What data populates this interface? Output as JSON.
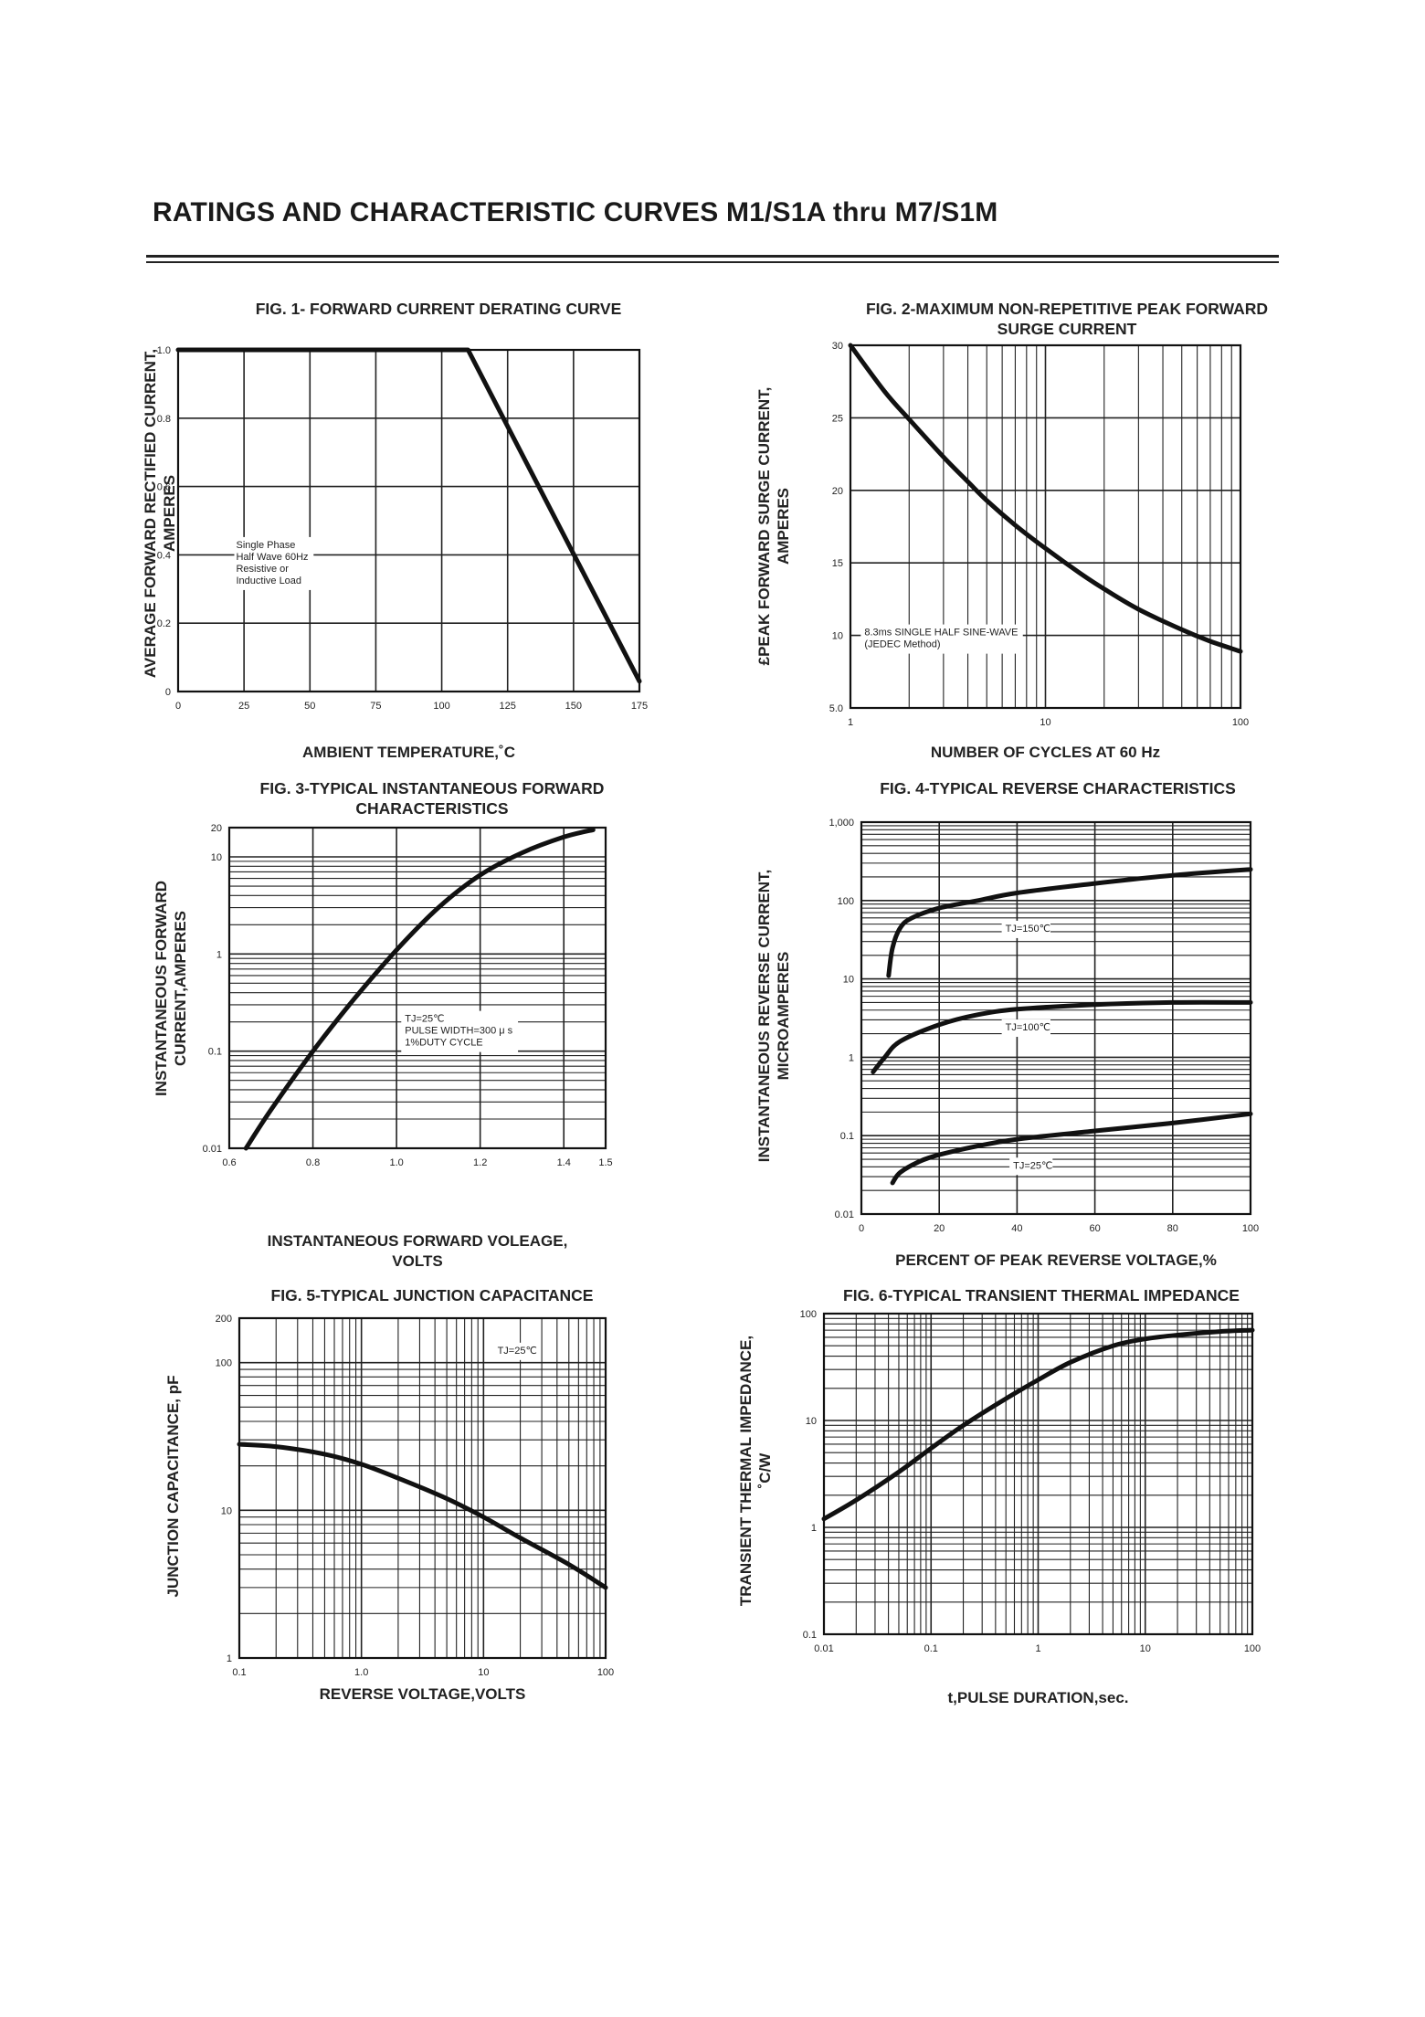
{
  "page": {
    "title": "RATINGS AND CHARACTERISTIC CURVES  M1/S1A thru M7/S1M"
  },
  "chart_data": [
    {
      "id": "fig1",
      "type": "line",
      "title": "FIG. 1- FORWARD CURRENT DERATING CURVE",
      "title_lines": [
        "FIG. 1- FORWARD CURRENT DERATING CURVE"
      ],
      "xlabel_lines": [
        "AMBIENT TEMPERATURE,˚C"
      ],
      "ylabel_lines": [
        "AVERAGE FORWARD RECTIFIED CURRENT,",
        "AMPERES"
      ],
      "xscale": "linear",
      "yscale": "linear",
      "xlim": [
        0,
        175
      ],
      "ylim": [
        0,
        1.0
      ],
      "x_ticks": [
        0,
        25,
        50,
        75,
        100,
        125,
        150,
        175
      ],
      "x_tick_labels": [
        "0",
        "25",
        "50",
        "75",
        "100",
        "125",
        "150",
        "175"
      ],
      "y_ticks": [
        0,
        0.2,
        0.4,
        0.6,
        0.8,
        1.0
      ],
      "y_tick_labels": [
        "0",
        "0.2",
        "0.4",
        "0.6",
        "0.8",
        "1.0"
      ],
      "grid": true,
      "series": [
        {
          "x": [
            0,
            110,
            175
          ],
          "y": [
            1.0,
            1.0,
            0.03
          ]
        }
      ],
      "annotations": [
        {
          "lines": [
            "Single Phase",
            "Half Wave 60Hz",
            "Resistive or",
            "Inductive Load"
          ],
          "x": 22,
          "y": 0.42,
          "boxed": false
        }
      ]
    },
    {
      "id": "fig2",
      "type": "line",
      "title": "FIG. 2-MAXIMUM NON-REPETITIVE PEAK FORWARD SURGE CURRENT",
      "title_lines": [
        "FIG. 2-MAXIMUM NON-REPETITIVE PEAK FORWARD",
        "SURGE CURRENT"
      ],
      "xlabel_lines": [
        "NUMBER OF CYCLES AT 60 Hz"
      ],
      "ylabel_lines": [
        "£PEAK  FORWARD SURGE CURRENT,",
        "AMPERES"
      ],
      "xscale": "log",
      "yscale": "linear",
      "xlim": [
        1,
        100
      ],
      "ylim": [
        5,
        30
      ],
      "x_ticks": [
        1,
        10,
        100
      ],
      "x_tick_labels": [
        "1",
        "10",
        "100"
      ],
      "y_ticks": [
        5,
        10,
        15,
        20,
        25,
        30
      ],
      "y_tick_labels": [
        "5.0",
        "10",
        "15",
        "20",
        "25",
        "30"
      ],
      "grid": true,
      "series": [
        {
          "x": [
            1,
            1.5,
            2,
            3,
            4,
            5,
            7,
            10,
            15,
            20,
            30,
            50,
            70,
            100
          ],
          "y": [
            30,
            26.8,
            24.9,
            22.3,
            20.6,
            19.3,
            17.6,
            16.0,
            14.3,
            13.2,
            11.8,
            10.4,
            9.6,
            8.9
          ]
        }
      ],
      "annotations": [
        {
          "lines": [
            "8.3ms SINGLE HALF SINE-WAVE",
            "(JEDEC Method)"
          ],
          "x": 1.18,
          "y": 10,
          "boxed": true
        }
      ]
    },
    {
      "id": "fig3",
      "type": "line",
      "title": "FIG. 3-TYPICAL INSTANTANEOUS FORWARD CHARACTERISTICS",
      "title_lines": [
        "FIG. 3-TYPICAL INSTANTANEOUS FORWARD",
        "CHARACTERISTICS"
      ],
      "xlabel_lines": [
        "INSTANTANEOUS FORWARD VOLEAGE,",
        "VOLTS"
      ],
      "ylabel_lines": [
        "INSTANTANEOUS FORWARD",
        "CURRENT,AMPERES"
      ],
      "xscale": "linear",
      "yscale": "log",
      "xlim": [
        0.6,
        1.5
      ],
      "ylim": [
        0.01,
        20
      ],
      "x_ticks": [
        0.6,
        0.8,
        1.0,
        1.2,
        1.4,
        1.5
      ],
      "x_tick_labels": [
        "0.6",
        "0.8",
        "1.0",
        "1.2",
        "1.4",
        "1.5"
      ],
      "y_ticks": [
        0.01,
        0.1,
        1,
        10,
        20
      ],
      "y_tick_labels": [
        "0.01",
        "0.1",
        "1",
        "10",
        "20"
      ],
      "grid": true,
      "series": [
        {
          "x": [
            0.64,
            0.7,
            0.8,
            0.9,
            1.0,
            1.1,
            1.2,
            1.3,
            1.4,
            1.47
          ],
          "y": [
            0.01,
            0.025,
            0.1,
            0.35,
            1.1,
            3.0,
            6.5,
            11,
            16,
            19
          ]
        }
      ],
      "annotations": [
        {
          "lines": [
            "TJ=25℃",
            "PULSE WIDTH=300 μ s",
            "1%DUTY CYCLE"
          ],
          "x": 1.02,
          "y": 0.2,
          "boxed": true
        }
      ]
    },
    {
      "id": "fig4",
      "type": "line",
      "title": "FIG. 4-TYPICAL REVERSE CHARACTERISTICS",
      "title_lines": [
        "FIG. 4-TYPICAL REVERSE CHARACTERISTICS"
      ],
      "xlabel_lines": [
        "PERCENT OF PEAK REVERSE VOLTAGE,%"
      ],
      "ylabel_lines": [
        "INSTANTANEOUS REVERSE CURRENT,",
        "MICROAMPERES"
      ],
      "xscale": "linear",
      "yscale": "log",
      "xlim": [
        0,
        100
      ],
      "ylim": [
        0.01,
        1000
      ],
      "x_ticks": [
        0,
        20,
        40,
        60,
        80,
        100
      ],
      "x_tick_labels": [
        "0",
        "20",
        "40",
        "60",
        "80",
        "100"
      ],
      "y_ticks": [
        0.01,
        0.1,
        1,
        10,
        100,
        1000
      ],
      "y_tick_labels": [
        "0.01",
        "0.1",
        "1",
        "10",
        "100",
        "1,000"
      ],
      "grid": true,
      "series": [
        {
          "name": "TJ=150℃",
          "x": [
            7,
            8,
            10,
            13,
            20,
            30,
            40,
            60,
            80,
            100
          ],
          "y": [
            11,
            25,
            45,
            60,
            80,
            100,
            125,
            165,
            210,
            250
          ]
        },
        {
          "name": "TJ=100℃",
          "x": [
            3,
            6,
            10,
            20,
            30,
            40,
            60,
            80,
            100
          ],
          "y": [
            0.65,
            1.0,
            1.6,
            2.6,
            3.5,
            4.1,
            4.7,
            5.0,
            5.0
          ]
        },
        {
          "name": "TJ=25℃",
          "x": [
            8,
            10,
            15,
            20,
            30,
            40,
            60,
            80,
            100
          ],
          "y": [
            0.025,
            0.034,
            0.047,
            0.057,
            0.074,
            0.09,
            0.115,
            0.145,
            0.19
          ]
        }
      ],
      "annotations": [
        {
          "lines": [
            "TJ=150℃"
          ],
          "x": 37,
          "y": 40,
          "boxed": true
        },
        {
          "lines": [
            "TJ=100℃"
          ],
          "x": 37,
          "y": 2.2,
          "boxed": true
        },
        {
          "lines": [
            "TJ=25℃"
          ],
          "x": 39,
          "y": 0.038,
          "boxed": true
        }
      ]
    },
    {
      "id": "fig5",
      "type": "line",
      "title": "FIG. 5-TYPICAL JUNCTION CAPACITANCE",
      "title_lines": [
        "FIG. 5-TYPICAL JUNCTION CAPACITANCE"
      ],
      "xlabel_lines": [
        "REVERSE VOLTAGE,VOLTS"
      ],
      "ylabel_lines": [
        "JUNCTION CAPACITANCE, pF"
      ],
      "xscale": "log",
      "yscale": "log",
      "xlim": [
        0.1,
        100
      ],
      "ylim": [
        1,
        200
      ],
      "x_ticks": [
        0.1,
        1,
        10,
        100
      ],
      "x_tick_labels": [
        "0.1",
        "1.0",
        "10",
        "100"
      ],
      "y_ticks": [
        1,
        10,
        100,
        200
      ],
      "y_tick_labels": [
        "1",
        "10",
        "100",
        "200"
      ],
      "grid": true,
      "series": [
        {
          "x": [
            0.1,
            0.2,
            0.5,
            1,
            2,
            5,
            10,
            20,
            50,
            100
          ],
          "y": [
            28,
            27,
            24,
            20.5,
            16.5,
            12,
            9,
            6.5,
            4.3,
            3.0
          ]
        }
      ],
      "annotations": [
        {
          "lines": [
            "TJ=25℃"
          ],
          "x": 13,
          "y": 115,
          "boxed": true
        }
      ]
    },
    {
      "id": "fig6",
      "type": "line",
      "title": "FIG. 6-TYPICAL TRANSIENT THERMAL IMPEDANCE",
      "title_lines": [
        "FIG. 6-TYPICAL TRANSIENT THERMAL IMPEDANCE"
      ],
      "xlabel_lines": [
        "t,PULSE DURATION,sec."
      ],
      "ylabel_lines": [
        "TRANSIENT THERMAL IMPEDANCE,",
        "˚C/W"
      ],
      "xscale": "log",
      "yscale": "log",
      "xlim": [
        0.01,
        100
      ],
      "ylim": [
        0.1,
        100
      ],
      "x_ticks": [
        0.01,
        0.1,
        1,
        10,
        100
      ],
      "x_tick_labels": [
        "0.01",
        "0.1",
        "1",
        "10",
        "100"
      ],
      "y_ticks": [
        0.1,
        1,
        10,
        100
      ],
      "y_tick_labels": [
        "0.1",
        "1",
        "10",
        "100"
      ],
      "grid": true,
      "series": [
        {
          "x": [
            0.01,
            0.02,
            0.05,
            0.1,
            0.2,
            0.5,
            1,
            2,
            5,
            10,
            20,
            50,
            100
          ],
          "y": [
            1.2,
            1.8,
            3.3,
            5.5,
            9,
            16,
            24,
            35,
            50,
            58,
            63,
            68,
            70
          ]
        }
      ],
      "annotations": []
    }
  ]
}
